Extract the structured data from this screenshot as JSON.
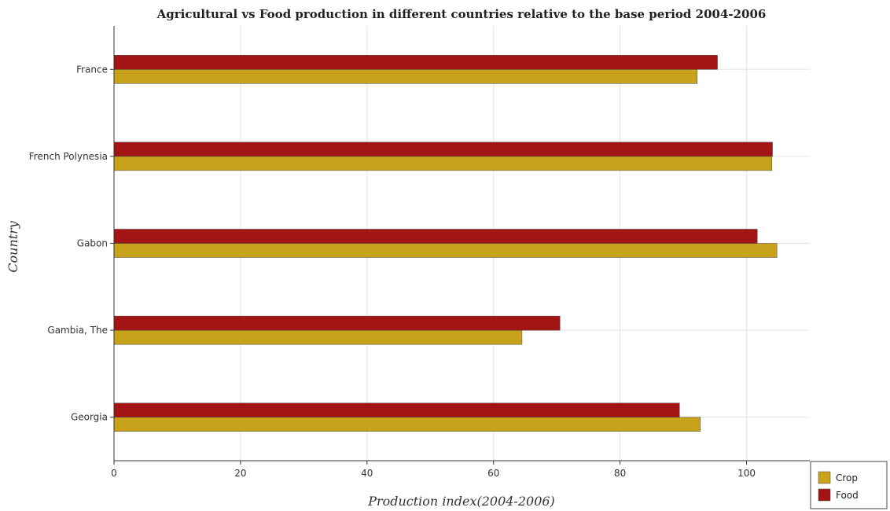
{
  "chart_data": {
    "type": "bar",
    "orientation": "horizontal",
    "title": "Agricultural vs Food production in different countries relative to the base period 2004-2006",
    "xlabel": "Production index(2004-2006)",
    "ylabel": "Country",
    "categories": [
      "France",
      "French Polynesia",
      "Gabon",
      "Gambia, The",
      "Georgia"
    ],
    "series": [
      {
        "name": "Crop",
        "color": "#c8a21a",
        "values": [
          92.2,
          104.0,
          104.8,
          64.5,
          92.7
        ]
      },
      {
        "name": "Food",
        "color": "#a31515",
        "values": [
          95.4,
          104.1,
          101.7,
          70.5,
          89.4
        ]
      }
    ],
    "xlim": [
      0,
      110
    ],
    "xticks": [
      0,
      20,
      40,
      60,
      80,
      100
    ],
    "grid": true,
    "legend_position": "bottom-right"
  }
}
